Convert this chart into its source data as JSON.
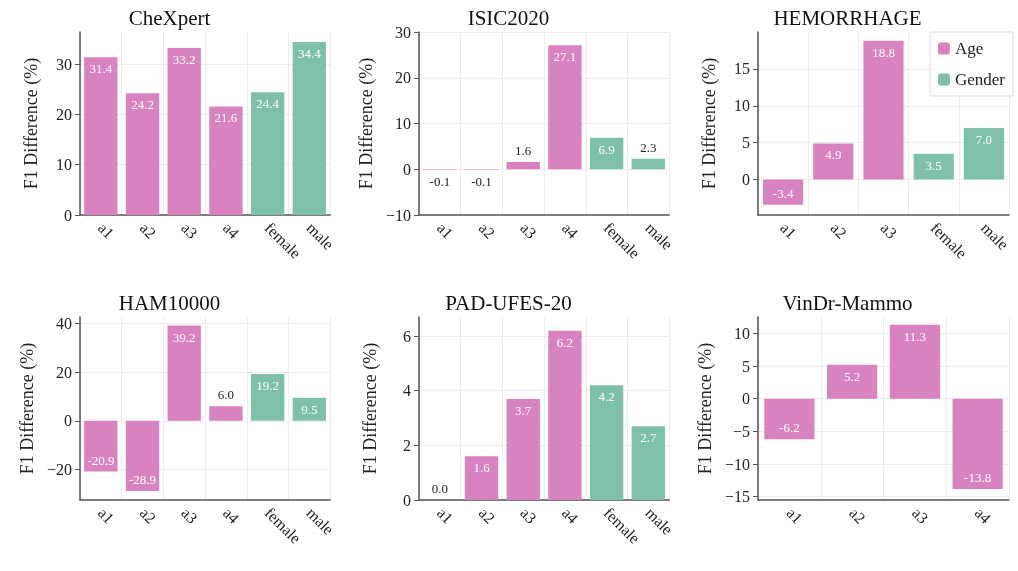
{
  "chart_data": [
    {
      "type": "bar",
      "title": "CheXpert",
      "ylabel": "F1 Difference (%)",
      "categories": [
        "a1",
        "a2",
        "a3",
        "a4",
        "female",
        "male"
      ],
      "series": [
        {
          "color": "#d982c0",
          "values": [
            31.4,
            24.2,
            33.2,
            21.6,
            null,
            null
          ],
          "value_labels": [
            "31.4",
            "24.2",
            "33.2",
            "21.6",
            null,
            null
          ]
        },
        {
          "color": "#7fc1a7",
          "values": [
            null,
            null,
            null,
            null,
            24.4,
            34.4
          ],
          "value_labels": [
            null,
            null,
            null,
            null,
            "24.4",
            "34.4"
          ]
        }
      ],
      "ylim": [
        0,
        36.4
      ],
      "yticks": [
        0,
        10,
        20,
        30
      ],
      "grid": true
    },
    {
      "type": "bar",
      "title": "ISIC2020",
      "ylabel": "F1 Difference (%)",
      "categories": [
        "a1",
        "a2",
        "a3",
        "a4",
        "female",
        "male"
      ],
      "series": [
        {
          "color": "#d982c0",
          "values": [
            -0.1,
            -0.1,
            1.6,
            27.1,
            null,
            null
          ],
          "value_labels": [
            "-0.1",
            "-0.1",
            "1.6",
            "27.1",
            null,
            null
          ]
        },
        {
          "color": "#7fc1a7",
          "values": [
            null,
            null,
            null,
            null,
            6.9,
            2.3
          ],
          "value_labels": [
            null,
            null,
            null,
            null,
            "6.9",
            "2.3"
          ]
        }
      ],
      "ylim": [
        -10,
        30
      ],
      "yticks": [
        {
          "value": -10,
          "label": "−10"
        },
        0,
        10,
        20,
        30
      ],
      "grid": true
    },
    {
      "type": "bar",
      "title": "HEMORRHAGE",
      "ylabel": "F1 Difference (%)",
      "categories": [
        "a1",
        "a2",
        "a3",
        "female",
        "male"
      ],
      "series": [
        {
          "name": "Age",
          "color": "#d982c0",
          "values": [
            -3.4,
            4.9,
            18.8,
            null,
            null
          ],
          "value_labels": [
            "-3.4",
            "4.9",
            "18.8",
            null,
            null
          ]
        },
        {
          "name": "Gender",
          "color": "#7fc1a7",
          "values": [
            null,
            null,
            null,
            3.5,
            7.0
          ],
          "value_labels": [
            null,
            null,
            null,
            "3.5",
            "7.0"
          ]
        }
      ],
      "ylim": [
        -4.8,
        20
      ],
      "yticks": [
        0,
        5,
        10,
        15
      ],
      "grid": true,
      "legend": "top right"
    },
    {
      "type": "bar",
      "title": "HAM10000",
      "ylabel": "F1 Difference (%)",
      "categories": [
        "a1",
        "a2",
        "a3",
        "a4",
        "female",
        "male"
      ],
      "series": [
        {
          "color": "#d982c0",
          "values": [
            -20.9,
            -28.9,
            39.2,
            6.0,
            null,
            null
          ],
          "value_labels": [
            "-20.9",
            "-28.9",
            "39.2",
            "6.0",
            null,
            null
          ]
        },
        {
          "color": "#7fc1a7",
          "values": [
            null,
            null,
            null,
            null,
            19.2,
            9.5
          ],
          "value_labels": [
            null,
            null,
            null,
            null,
            "19.2",
            "9.5"
          ]
        }
      ],
      "ylim": [
        -32.6,
        42.7
      ],
      "yticks": [
        {
          "value": -20,
          "label": "−20"
        },
        0,
        20,
        40
      ],
      "grid": true
    },
    {
      "type": "bar",
      "title": "PAD-UFES-20",
      "ylabel": "F1 Difference (%)",
      "categories": [
        "a1",
        "a2",
        "a3",
        "a4",
        "female",
        "male"
      ],
      "series": [
        {
          "color": "#d982c0",
          "values": [
            0.0,
            1.6,
            3.7,
            6.2,
            null,
            null
          ],
          "value_labels": [
            "0.0",
            "1.6",
            "3.7",
            "6.2",
            null,
            null
          ]
        },
        {
          "color": "#7fc1a7",
          "values": [
            null,
            null,
            null,
            null,
            4.2,
            2.7
          ],
          "value_labels": [
            null,
            null,
            null,
            null,
            "4.2",
            "2.7"
          ]
        }
      ],
      "ylim": [
        0,
        6.7
      ],
      "yticks": [
        0,
        2,
        4,
        6
      ],
      "grid": true
    },
    {
      "type": "bar",
      "title": "VinDr-Mammo",
      "ylabel": "F1 Difference (%)",
      "categories": [
        "a1",
        "a2",
        "a3",
        "a4"
      ],
      "series": [
        {
          "color": "#d982c0",
          "values": [
            -6.2,
            5.2,
            11.3,
            -13.8
          ],
          "value_labels": [
            "-6.2",
            "5.2",
            "11.3",
            "-13.8"
          ]
        }
      ],
      "ylim": [
        -15.5,
        12.5
      ],
      "yticks": [
        {
          "value": -15,
          "label": "−15"
        },
        {
          "value": -10,
          "label": "−10"
        },
        {
          "value": -5,
          "label": "−5"
        },
        0,
        5,
        10
      ],
      "grid": true
    }
  ]
}
